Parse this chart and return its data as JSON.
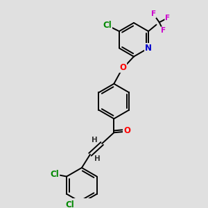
{
  "background_color": "#e0e0e0",
  "atom_colors": {
    "C": "#000000",
    "H": "#333333",
    "O": "#ff0000",
    "N": "#0000cc",
    "Cl": "#008800",
    "F": "#cc00cc"
  },
  "bond_color": "#000000",
  "bond_width": 1.4,
  "font_size_atom": 8.5,
  "font_size_small": 7.5,
  "xlim": [
    0,
    10
  ],
  "ylim": [
    0,
    10
  ]
}
